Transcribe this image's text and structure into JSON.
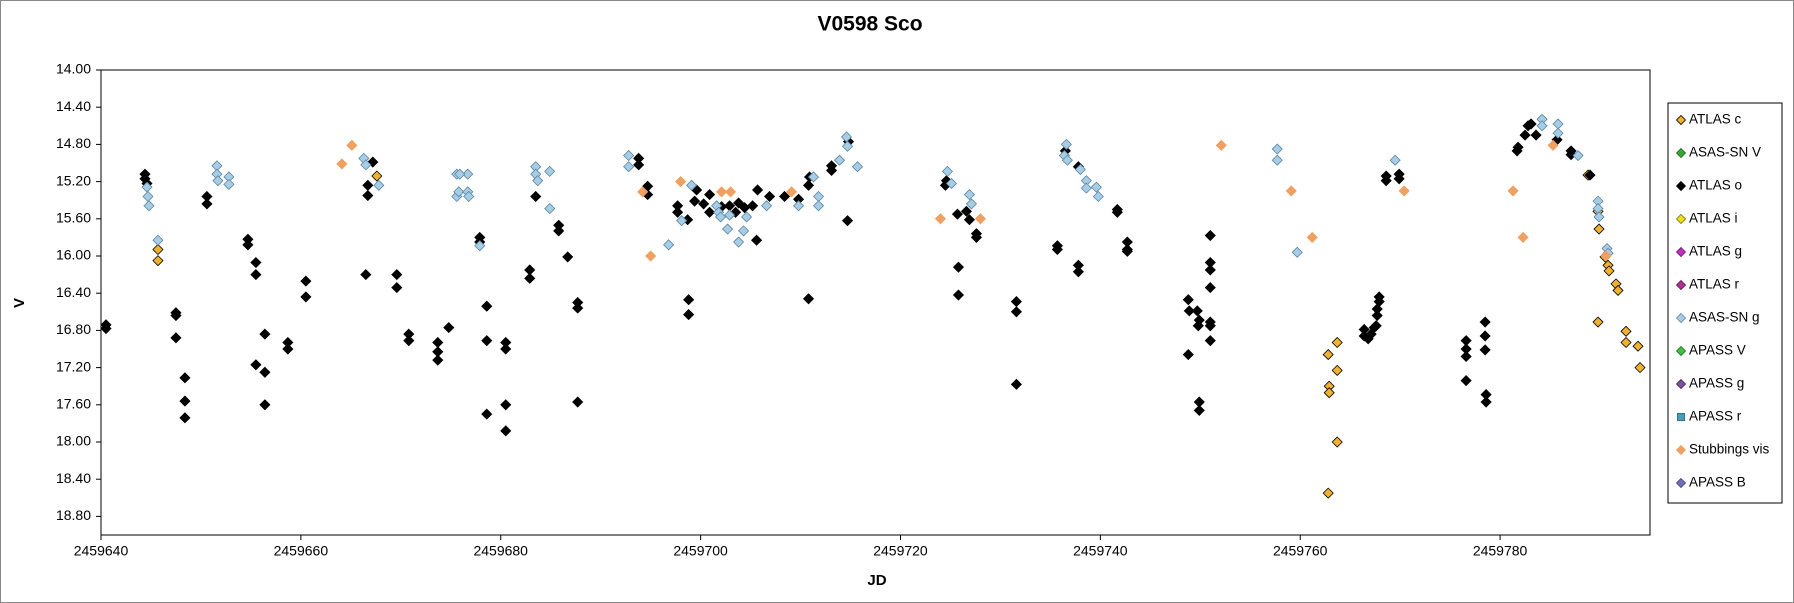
{
  "chart_data": {
    "type": "scatter",
    "title": "V0598 Sco",
    "x_label": "JD",
    "y_label": "V",
    "xlim": [
      2459640,
      2459795
    ],
    "xticks": [
      2459640,
      2459660,
      2459680,
      2459700,
      2459720,
      2459740,
      2459760,
      2459780
    ],
    "ylim": [
      14,
      19
    ],
    "y_inverted": true,
    "yticks": [
      {
        "value": 14,
        "label": "14.00"
      },
      {
        "value": 14.4,
        "label": "14.40"
      },
      {
        "value": 14.8,
        "label": "14.80"
      },
      {
        "value": 15.2,
        "label": "15.20"
      },
      {
        "value": 15.6,
        "label": "15.60"
      },
      {
        "value": 16,
        "label": "16.00"
      },
      {
        "value": 16.4,
        "label": "16.40"
      },
      {
        "value": 16.8,
        "label": "16.80"
      },
      {
        "value": 17.2,
        "label": "17.20"
      },
      {
        "value": 17.6,
        "label": "17.60"
      },
      {
        "value": 18,
        "label": "18.00"
      },
      {
        "value": 18.4,
        "label": "18.40"
      },
      {
        "value": 18.8,
        "label": "18.80"
      }
    ],
    "legend": "right",
    "series": [
      {
        "name": "ATLAS c",
        "color": "#f0b030",
        "edge": "#000000",
        "marker": "diamond",
        "x": [
          2459645.7,
          2459645.7,
          2459667.6,
          2459762.8,
          2459762.9,
          2459762.9,
          2459763.7,
          2459763.7,
          2459763.7,
          2459762.8,
          2459788.8,
          2459789.8,
          2459789.9,
          2459789.8,
          2459790.5,
          2459790.8,
          2459790.9,
          2459791.6,
          2459791.8,
          2459792.6,
          2459792.6,
          2459793.8,
          2459794.0
        ],
        "values": [
          15.93,
          16.05,
          15.14,
          17.06,
          17.4,
          17.47,
          16.93,
          17.23,
          18.0,
          18.55,
          15.13,
          15.52,
          15.71,
          16.71,
          16.01,
          16.1,
          16.16,
          16.3,
          16.37,
          16.81,
          16.93,
          16.97,
          17.2
        ]
      },
      {
        "name": "ASAS-SN V",
        "color": "#33aa33",
        "edge": "#226622",
        "marker": "diamond",
        "x": [],
        "values": []
      },
      {
        "name": "ATLAS o",
        "color": "#000000",
        "edge": "#000000",
        "marker": "diamond",
        "x": [
          2459640.5,
          2459640.5,
          2459644.4,
          2459644.4,
          2459644.6,
          2459647.5,
          2459647.5,
          2459647.5,
          2459648.4,
          2459648.4,
          2459648.4,
          2459650.6,
          2459650.6,
          2459654.7,
          2459654.7,
          2459655.5,
          2459655.5,
          2459655.5,
          2459656.4,
          2459656.4,
          2459656.4,
          2459658.7,
          2459658.7,
          2459660.5,
          2459660.5,
          2459666.5,
          2459666.7,
          2459666.7,
          2459667.2,
          2459669.6,
          2459669.6,
          2459670.8,
          2459670.8,
          2459673.7,
          2459673.7,
          2459673.7,
          2459674.8,
          2459677.9,
          2459677.9,
          2459678.6,
          2459678.6,
          2459678.6,
          2459680.5,
          2459680.5,
          2459680.5,
          2459680.5,
          2459682.9,
          2459682.9,
          2459683.5,
          2459685.8,
          2459685.8,
          2459686.7,
          2459687.7,
          2459687.7,
          2459687.7,
          2459693.8,
          2459693.8,
          2459694.7,
          2459694.7,
          2459697.7,
          2459697.7,
          2459698.7,
          2459698.8,
          2459698.8,
          2459699.4,
          2459699.6,
          2459700.9,
          2459700.3,
          2459700.9,
          2459702.1,
          2459702.9,
          2459703.5,
          2459703.8,
          2459704.4,
          2459705.2,
          2459705.6,
          2459705.7,
          2459706.9,
          2459708.4,
          2459709.8,
          2459710.8,
          2459710.8,
          2459710.9,
          2459713.1,
          2459713.1,
          2459714.7,
          2459714.8,
          2459724.5,
          2459724.6,
          2459725.7,
          2459725.8,
          2459725.8,
          2459726.6,
          2459726.9,
          2459727.6,
          2459727.6,
          2459731.6,
          2459731.6,
          2459731.6,
          2459735.7,
          2459735.7,
          2459736.5,
          2459737.8,
          2459737.8,
          2459737.8,
          2459741.7,
          2459741.7,
          2459742.7,
          2459742.7,
          2459742.7,
          2459748.8,
          2459748.8,
          2459748.9,
          2459749.7,
          2459749.8,
          2459749.9,
          2459749.9,
          2459749.9,
          2459751.0,
          2459751.0,
          2459751.0,
          2459751.0,
          2459751.0,
          2459751.0,
          2459751.0,
          2459766.4,
          2459766.4,
          2459766.8,
          2459767.1,
          2459767.4,
          2459767.7,
          2459767.9,
          2459767.9,
          2459767.7,
          2459767.6,
          2459768.6,
          2459768.6,
          2459769.9,
          2459769.9,
          2459776.6,
          2459776.6,
          2459776.6,
          2459776.6,
          2459778.5,
          2459778.5,
          2459778.5,
          2459778.6,
          2459778.6,
          2459781.7,
          2459781.8,
          2459782.5,
          2459782.8,
          2459783.1,
          2459783.6,
          2459785.7,
          2459787.1,
          2459787.1,
          2459789.0
        ],
        "values": [
          16.74,
          16.78,
          15.12,
          15.17,
          15.22,
          16.61,
          16.64,
          16.88,
          17.31,
          17.56,
          17.74,
          15.36,
          15.44,
          15.82,
          15.88,
          16.07,
          16.2,
          17.17,
          16.84,
          17.25,
          17.6,
          16.93,
          17.0,
          16.27,
          16.44,
          16.2,
          15.24,
          15.35,
          14.99,
          16.2,
          16.34,
          16.84,
          16.91,
          16.93,
          17.03,
          17.12,
          16.77,
          15.8,
          15.85,
          16.54,
          16.91,
          17.7,
          16.93,
          17.0,
          17.6,
          17.88,
          16.15,
          16.24,
          15.36,
          15.67,
          15.73,
          16.01,
          16.5,
          16.56,
          17.57,
          14.95,
          15.02,
          15.25,
          15.34,
          15.46,
          15.53,
          15.61,
          16.47,
          16.63,
          15.41,
          15.29,
          15.53,
          15.44,
          15.34,
          15.47,
          15.46,
          15.53,
          15.43,
          15.48,
          15.46,
          15.83,
          15.29,
          15.36,
          15.36,
          15.39,
          16.46,
          15.24,
          15.15,
          15.08,
          15.03,
          15.62,
          14.77,
          15.24,
          15.19,
          15.55,
          16.12,
          16.42,
          15.52,
          15.61,
          15.76,
          15.8,
          16.49,
          16.6,
          17.38,
          15.89,
          15.93,
          14.87,
          16.17,
          16.1,
          15.04,
          15.5,
          15.53,
          15.85,
          15.93,
          15.95,
          17.06,
          16.47,
          16.59,
          16.59,
          16.75,
          17.57,
          17.66,
          16.69,
          16.75,
          16.91,
          16.34,
          16.15,
          16.07,
          15.78,
          16.71,
          16.79,
          16.86,
          16.89,
          16.84,
          16.77,
          16.64,
          16.44,
          16.49,
          16.57,
          16.75,
          15.14,
          15.19,
          15.12,
          15.17,
          16.91,
          17.0,
          17.08,
          17.34,
          16.71,
          16.86,
          17.01,
          17.49,
          17.57,
          14.87,
          14.83,
          14.7,
          14.6,
          14.58,
          14.7,
          14.75,
          14.87,
          14.91,
          15.13
        ]
      },
      {
        "name": "ATLAS i",
        "color": "#e8e020",
        "edge": "#807000",
        "marker": "diamond",
        "x": [],
        "values": []
      },
      {
        "name": "ATLAS g",
        "color": "#c030c0",
        "edge": "#701070",
        "marker": "diamond",
        "x": [],
        "values": []
      },
      {
        "name": "ATLAS r",
        "color": "#b03090",
        "edge": "#601050",
        "marker": "diamond",
        "x": [],
        "values": []
      },
      {
        "name": "ASAS-SN g",
        "color": "#a8cce4",
        "edge": "#5a88a8",
        "marker": "diamond",
        "x": [
          2459644.6,
          2459644.7,
          2459644.8,
          2459645.7,
          2459651.6,
          2459651.6,
          2459651.7,
          2459652.8,
          2459652.8,
          2459666.3,
          2459666.5,
          2459667.8,
          2459675.6,
          2459675.6,
          2459675.8,
          2459676.7,
          2459676.7,
          2459676.8,
          2459675.9,
          2459677.9,
          2459683.5,
          2459683.5,
          2459683.7,
          2459684.9,
          2459684.9,
          2459692.8,
          2459692.8,
          2459696.8,
          2459698.1,
          2459699.1,
          2459701.6,
          2459701.8,
          2459702.0,
          2459702.7,
          2459703.8,
          2459704.3,
          2459704.6,
          2459702.9,
          2459706.6,
          2459709.8,
          2459711.3,
          2459711.8,
          2459711.8,
          2459713.9,
          2459714.6,
          2459714.7,
          2459715.7,
          2459724.7,
          2459725.1,
          2459726.9,
          2459727.1,
          2459736.6,
          2459736.4,
          2459736.7,
          2459738.0,
          2459738.6,
          2459738.6,
          2459739.6,
          2459739.8,
          2459757.7,
          2459757.7,
          2459759.7,
          2459769.5,
          2459784.2,
          2459784.2,
          2459785.8,
          2459785.8,
          2459787.8,
          2459789.8,
          2459789.8,
          2459789.9,
          2459790.7,
          2459790.8
        ],
        "values": [
          15.26,
          15.36,
          15.46,
          15.83,
          15.03,
          15.12,
          15.19,
          15.15,
          15.23,
          14.95,
          15.02,
          15.24,
          15.12,
          15.36,
          15.31,
          15.12,
          15.31,
          15.36,
          15.12,
          15.89,
          15.04,
          15.12,
          15.19,
          15.09,
          15.49,
          14.92,
          15.04,
          15.88,
          15.62,
          15.24,
          15.46,
          15.53,
          15.58,
          15.71,
          15.85,
          15.73,
          15.58,
          15.56,
          15.46,
          15.46,
          15.15,
          15.36,
          15.46,
          14.97,
          14.72,
          14.82,
          15.04,
          15.09,
          15.22,
          15.34,
          15.44,
          14.8,
          14.92,
          14.97,
          15.07,
          15.19,
          15.27,
          15.26,
          15.36,
          14.85,
          14.97,
          15.96,
          14.97,
          14.53,
          14.6,
          14.58,
          14.68,
          14.92,
          15.41,
          15.49,
          15.58,
          15.92,
          15.97
        ]
      },
      {
        "name": "APASS V",
        "color": "#40c040",
        "edge": "#207020",
        "marker": "diamond",
        "x": [],
        "values": []
      },
      {
        "name": "APASS g",
        "color": "#8050a0",
        "edge": "#402060",
        "marker": "diamond",
        "x": [],
        "values": []
      },
      {
        "name": "APASS r",
        "color": "#4a9ab8",
        "edge": "#2a6a88",
        "marker": "square",
        "x": [],
        "values": []
      },
      {
        "name": "Stubbings vis",
        "color": "#f0a060",
        "edge": "#f0a060",
        "marker": "diamond",
        "x": [
          2459664.1,
          2459665.1,
          2459694.2,
          2459695.0,
          2459698.0,
          2459702.1,
          2459703.0,
          2459709.1,
          2459724.0,
          2459728.0,
          2459752.1,
          2459759.1,
          2459761.2,
          2459770.4,
          2459781.3,
          2459782.3,
          2459785.3,
          2459790.6
        ],
        "values": [
          15.01,
          14.81,
          15.31,
          16.0,
          15.2,
          15.31,
          15.31,
          15.31,
          15.6,
          15.6,
          14.81,
          15.3,
          15.8,
          15.3,
          15.3,
          15.8,
          14.81,
          16.0
        ]
      },
      {
        "name": "APASS B",
        "color": "#7070b8",
        "edge": "#404080",
        "marker": "diamond",
        "x": [],
        "values": []
      }
    ]
  }
}
